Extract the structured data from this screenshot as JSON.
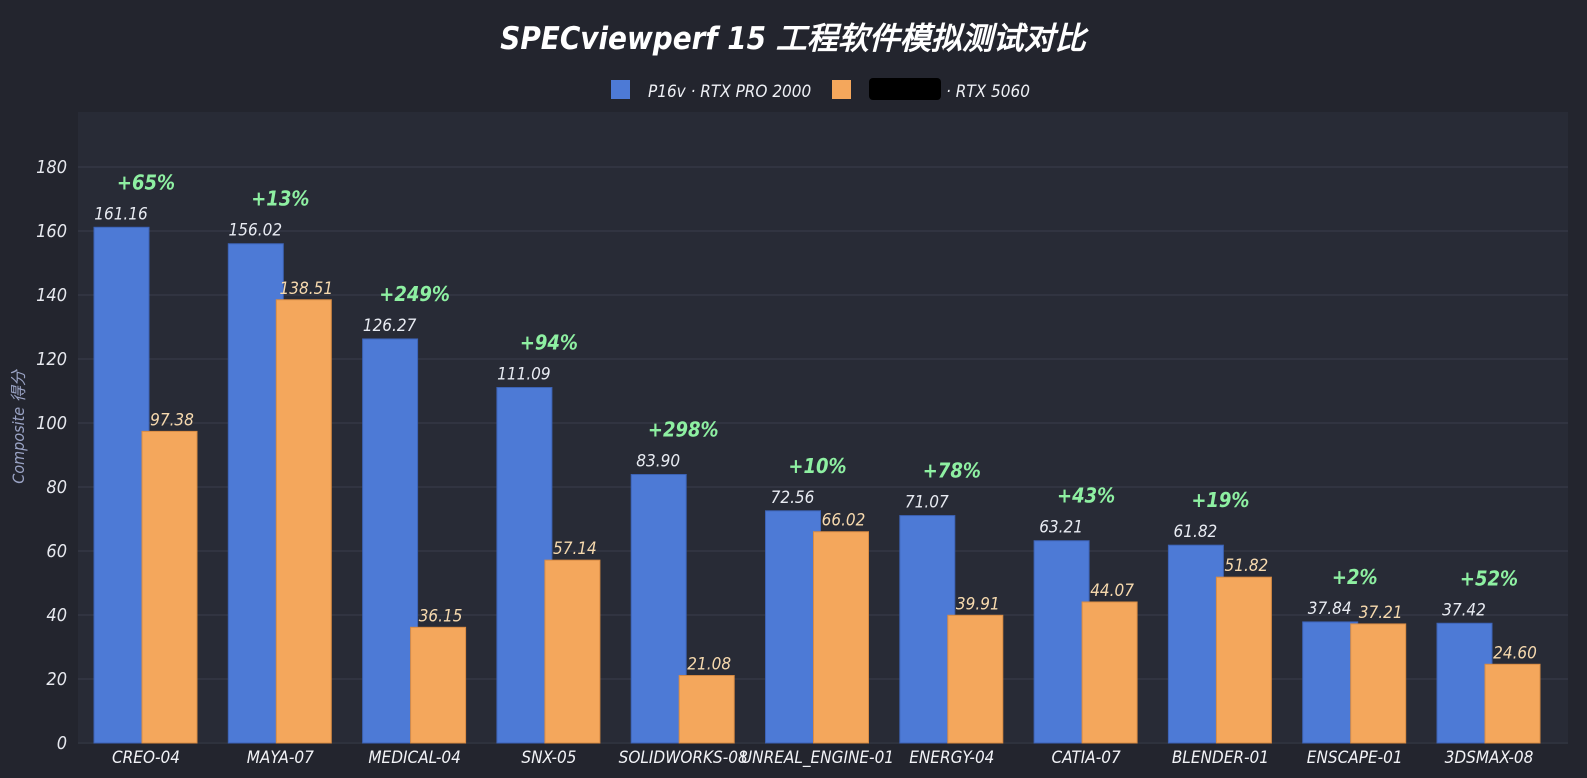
{
  "chart_data": {
    "type": "bar",
    "title": "SPECviewperf 15 工程软件模拟测试对比",
    "ylabel": "Composite 得分",
    "ylim": [
      0,
      180
    ],
    "yticks": [
      0,
      20,
      40,
      60,
      80,
      100,
      120,
      140,
      160,
      180
    ],
    "grid": true,
    "legend_position": "top-center",
    "categories": [
      "CREO-04",
      "MAYA-07",
      "MEDICAL-04",
      "SNX-05",
      "SOLIDWORKS-08",
      "UNREAL_ENGINE-01",
      "ENERGY-04",
      "CATIA-07",
      "BLENDER-01",
      "ENSCAPE-01",
      "3DSMAX-08"
    ],
    "series": [
      {
        "name": "P16v · RTX PRO 2000",
        "color": "#4d7ad6",
        "values": [
          161.16,
          156.02,
          126.27,
          111.09,
          83.9,
          72.56,
          71.07,
          63.21,
          61.82,
          37.84,
          37.42
        ],
        "labels": [
          "161.16",
          "156.02",
          "126.27",
          "111.09",
          "83.90",
          "72.56",
          "71.07",
          "63.21",
          "61.82",
          "37.84",
          "37.42"
        ]
      },
      {
        "name": "· RTX 5060",
        "color": "#f4a75c",
        "values": [
          97.38,
          138.51,
          36.15,
          57.14,
          21.08,
          66.02,
          39.91,
          44.07,
          51.82,
          37.21,
          24.6
        ],
        "labels": [
          "97.38",
          "138.51",
          "36.15",
          "57.14",
          "21.08",
          "66.02",
          "39.91",
          "44.07",
          "51.82",
          "37.21",
          "24.60"
        ]
      }
    ],
    "annotations": [
      "+65%",
      "+13%",
      "+249%",
      "+94%",
      "+298%",
      "+10%",
      "+78%",
      "+43%",
      "+19%",
      "+2%",
      "+52%"
    ]
  },
  "colors": {
    "background": "#23252e",
    "plot_background": "#282b36",
    "gridline": "#3a3e4c",
    "annotation": "#8ef0a2"
  }
}
